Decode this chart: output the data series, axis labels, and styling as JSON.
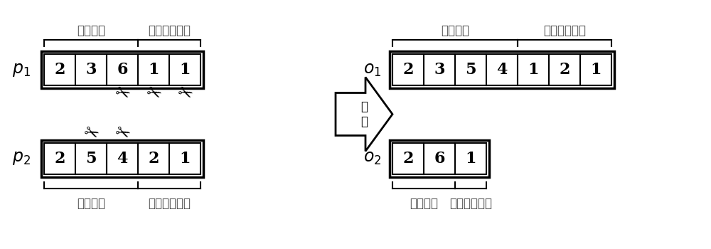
{
  "p1_values": [
    "2",
    "3",
    "6",
    "1",
    "1"
  ],
  "p2_values": [
    "2",
    "5",
    "4",
    "2",
    "1"
  ],
  "o1_values": [
    "2",
    "3",
    "5",
    "4",
    "1",
    "2",
    "1"
  ],
  "o2_values": [
    "2",
    "6",
    "1"
  ],
  "p1_label": "$p_1$",
  "p2_label": "$p_2$",
  "o1_label": "$o_1$",
  "o2_label": "$o_2$",
  "top_label1": "视图编码",
  "top_label2": "融合算子编码",
  "bottom_label1": "视图编码",
  "bottom_label2": "融合算子编码",
  "arrow_text": "交\n叉",
  "bg_color": "#ffffff",
  "p1_view_count": 3,
  "p1_fuse_count": 2,
  "p2_view_count": 3,
  "p2_fuse_count": 2,
  "o1_view_count": 4,
  "o1_fuse_count": 3,
  "o2_view_count": 2,
  "o2_fuse_count": 1
}
